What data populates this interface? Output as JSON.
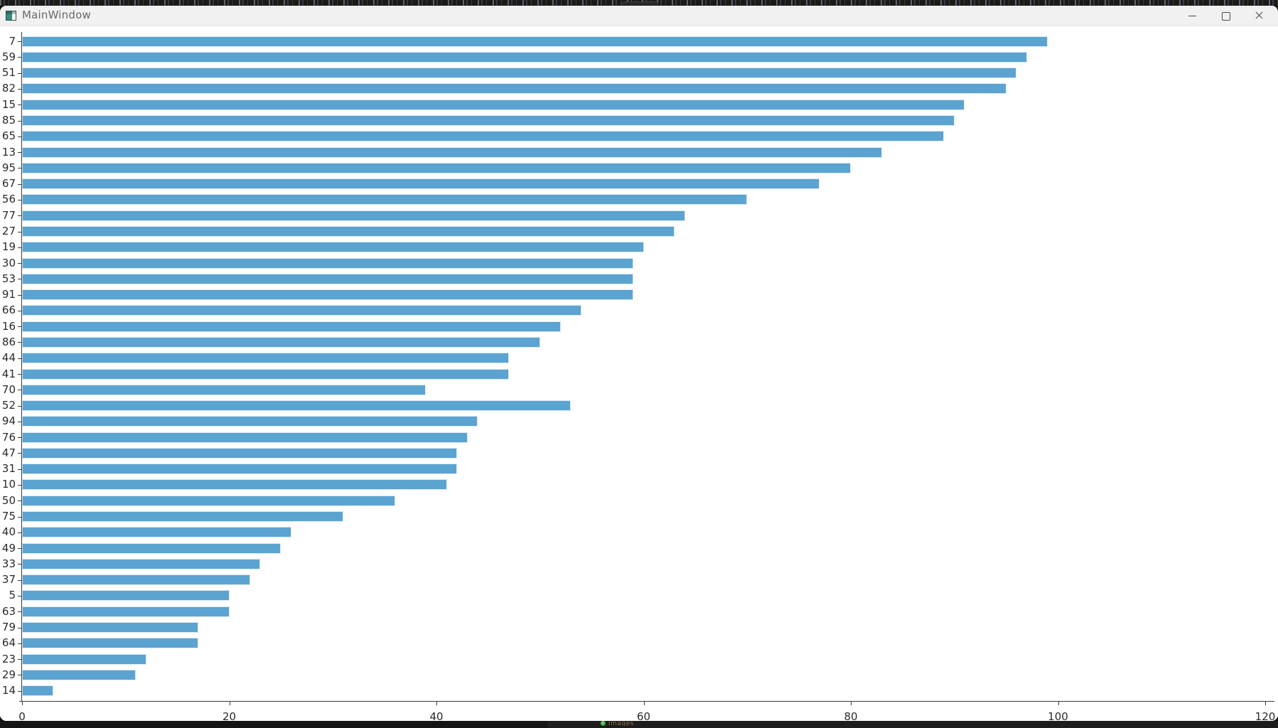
{
  "window": {
    "title": "MainWindow",
    "controls": [
      {
        "name": "minimize"
      },
      {
        "name": "maximize"
      },
      {
        "name": "close"
      }
    ]
  },
  "chart_data": {
    "type": "bar",
    "orientation": "horizontal",
    "title": "",
    "xlabel": "",
    "ylabel": "",
    "categories": [
      "7",
      "59",
      "51",
      "82",
      "15",
      "85",
      "65",
      "13",
      "95",
      "67",
      "56",
      "77",
      "27",
      "19",
      "30",
      "53",
      "91",
      "66",
      "16",
      "86",
      "44",
      "41",
      "70",
      "52",
      "94",
      "76",
      "47",
      "31",
      "10",
      "50",
      "75",
      "40",
      "49",
      "33",
      "37",
      "5",
      "63",
      "79",
      "64",
      "23",
      "29",
      "14"
    ],
    "values": [
      99,
      97,
      96,
      95,
      91,
      90,
      89,
      83,
      80,
      77,
      70,
      64,
      63,
      60,
      59,
      59,
      59,
      54,
      52,
      50,
      47,
      47,
      39,
      53,
      44,
      43,
      42,
      42,
      41,
      36,
      31,
      26,
      25,
      23,
      22,
      20,
      20,
      17,
      17,
      12,
      11,
      3
    ],
    "x_ticks": [
      0,
      20,
      40,
      60,
      80,
      100,
      120
    ],
    "xlim": [
      0,
      120
    ],
    "bar_color": "#5ba3d0",
    "grid": false,
    "legend": false
  },
  "taskbar": {
    "tray_text": "Images"
  }
}
